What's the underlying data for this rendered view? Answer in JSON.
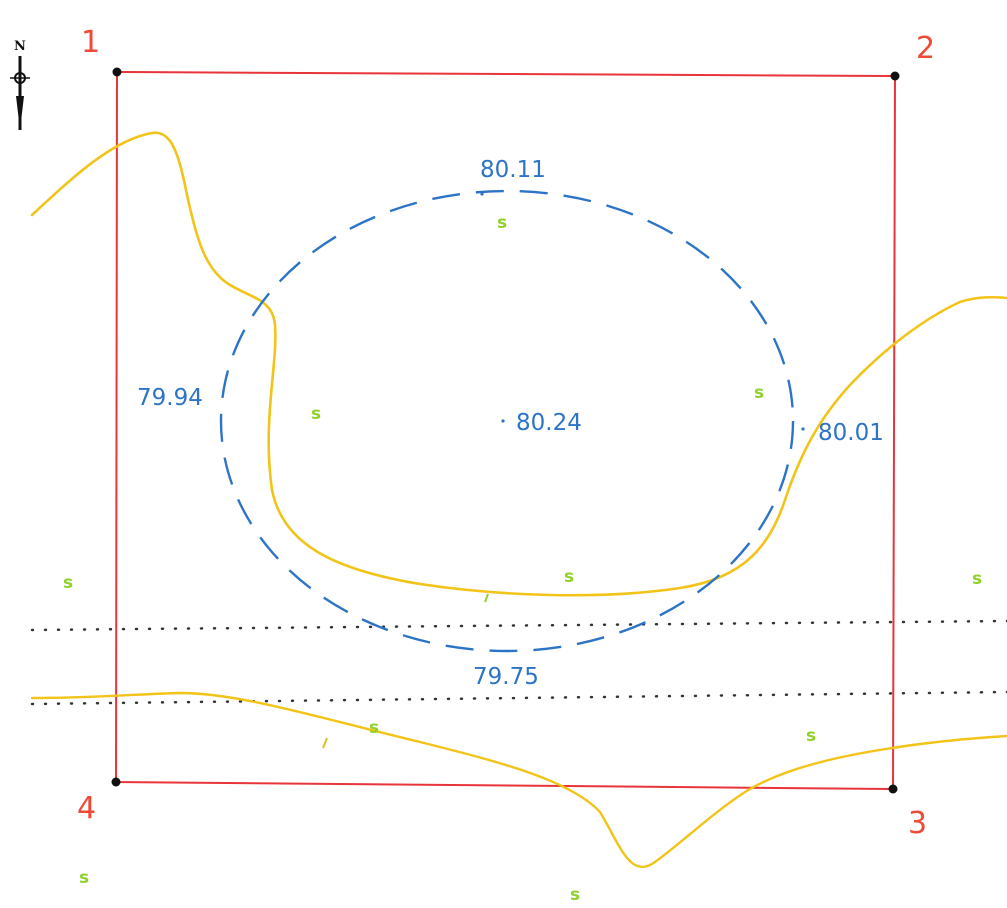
{
  "colors": {
    "boundary": "#e8343a",
    "corner_label": "#ee4a36",
    "corner_point": "#111111",
    "contour": "#f2c419",
    "mound_outline": "#2d74c6",
    "elevation_text": "#2d74c6",
    "vegetation": "#8fd22a",
    "dotted_line": "#333333"
  },
  "north_arrow": {
    "icon": "north-arrow-icon",
    "letter": "N"
  },
  "corners": [
    {
      "id": "1",
      "label": "1"
    },
    {
      "id": "2",
      "label": "2"
    },
    {
      "id": "3",
      "label": "3"
    },
    {
      "id": "4",
      "label": "4"
    }
  ],
  "elevations": {
    "top": "80.11",
    "center": "80.24",
    "left": "79.94",
    "right": "80.01",
    "bottom": "79.75"
  },
  "vegetation_symbol": "ѕ",
  "vegetation_count": 12
}
